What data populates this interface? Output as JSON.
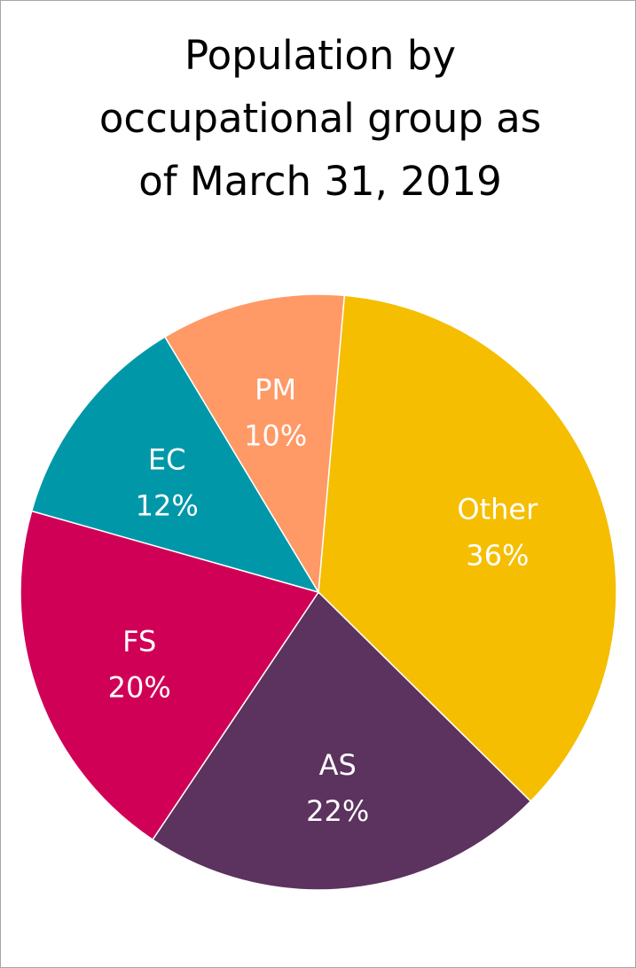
{
  "chart_data": {
    "type": "pie",
    "title_lines": [
      "Population by",
      "occupational group as",
      "of March 31, 2019"
    ],
    "start_angle_deg": 0,
    "direction": "clockwise",
    "slices": [
      {
        "label": "Other",
        "value": 36,
        "value_label": "36%",
        "color": "#F5BE00"
      },
      {
        "label": "AS",
        "value": 22,
        "value_label": "22%",
        "color": "#5C325F"
      },
      {
        "label": "FS",
        "value": 20,
        "value_label": "20%",
        "color": "#D10057"
      },
      {
        "label": "EC",
        "value": 12,
        "value_label": "12%",
        "color": "#0098A8"
      },
      {
        "label": "PM",
        "value": 10,
        "value_label": "10%",
        "color": "#FF9966"
      }
    ]
  }
}
